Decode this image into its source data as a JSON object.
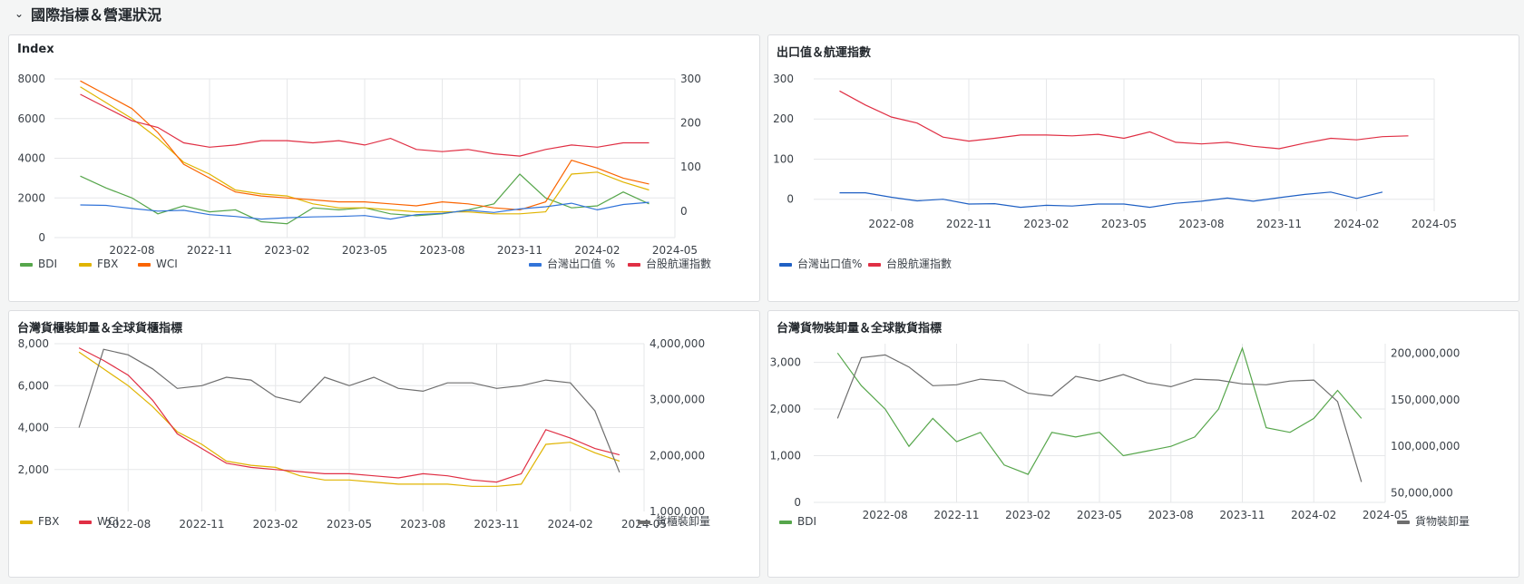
{
  "row": {
    "title": "國際指標＆營運狀況"
  },
  "colors": {
    "bdi": "#56a64b",
    "fbx": "#e0b400",
    "wci": "#fa6400",
    "export": "#3274d9",
    "shipping": "#e02f44",
    "gray": "#6e6e6e",
    "wci2": "#e02f44",
    "blue2": "#1f60c4"
  },
  "panels": [
    {
      "title": "Index",
      "legend_left": [
        "BDI",
        "FBX",
        "WCI"
      ],
      "legend_right": [
        "台灣出口值 %",
        "台股航運指數"
      ],
      "chart_data": {
        "type": "line",
        "x_ticks": [
          "2022-08",
          "2022-11",
          "2023-02",
          "2023-05",
          "2023-08",
          "2023-11",
          "2024-02",
          "2024-05"
        ],
        "y_left_ticks": [
          "8000",
          "6000",
          "4000",
          "2000",
          "0"
        ],
        "y_right_ticks": [
          "300",
          "200",
          "100",
          "0"
        ],
        "ylim_left": [
          0,
          8000
        ],
        "ylim_right": [
          -60,
          300
        ],
        "x_dates": [
          "2022-06",
          "2022-07",
          "2022-08",
          "2022-09",
          "2022-10",
          "2022-11",
          "2022-12",
          "2023-01",
          "2023-02",
          "2023-03",
          "2023-04",
          "2023-05",
          "2023-06",
          "2023-07",
          "2023-08",
          "2023-09",
          "2023-10",
          "2023-11",
          "2023-12",
          "2024-01",
          "2024-02",
          "2024-03",
          "2024-04"
        ],
        "series": [
          {
            "name": "BDI",
            "axis": "left",
            "values": [
              3100,
              2500,
              2000,
              1200,
              1600,
              1300,
              1400,
              800,
              700,
              1500,
              1400,
              1500,
              1200,
              1100,
              1200,
              1400,
              1700,
              3200,
              2000,
              1500,
              1600,
              2300,
              1700
            ]
          },
          {
            "name": "FBX",
            "axis": "left",
            "values": [
              7600,
              6800,
              6000,
              5000,
              3800,
              3200,
              2400,
              2200,
              2100,
              1700,
              1500,
              1500,
              1400,
              1300,
              1300,
              1300,
              1200,
              1200,
              1300,
              3200,
              3300,
              2800,
              2400
            ]
          },
          {
            "name": "WCI",
            "axis": "left",
            "values": [
              7900,
              7200,
              6500,
              5300,
              3700,
              3000,
              2300,
              2100,
              2000,
              1900,
              1800,
              1800,
              1700,
              1600,
              1800,
              1700,
              1500,
              1400,
              1800,
              3900,
              3500,
              3000,
              2700
            ]
          },
          {
            "name": "台灣出口值 %",
            "axis": "right",
            "values": [
              14,
              13,
              6,
              0,
              2,
              -8,
              -12,
              -18,
              -15,
              -13,
              -12,
              -10,
              -18,
              -8,
              -5,
              2,
              -3,
              5,
              10,
              18,
              3,
              15,
              20
            ]
          },
          {
            "name": "台股航運指數",
            "axis": "right",
            "values": [
              265,
              235,
              205,
              190,
              155,
              145,
              150,
              160,
              160,
              155,
              160,
              150,
              165,
              140,
              135,
              140,
              130,
              125,
              140,
              150,
              145,
              155,
              155
            ]
          }
        ]
      }
    },
    {
      "title": "出口值＆航運指數",
      "legend_left": [
        "台灣出口值%",
        "台股航運指數"
      ],
      "chart_data": {
        "type": "line",
        "x_ticks": [
          "2022-08",
          "2022-11",
          "2023-02",
          "2023-05",
          "2023-08",
          "2023-11",
          "2024-02",
          "2024-05"
        ],
        "y_left_ticks": [
          "300",
          "200",
          "100",
          "0"
        ],
        "ylim_left": [
          -30,
          300
        ],
        "x_dates": [
          "2022-06",
          "2022-07",
          "2022-08",
          "2022-09",
          "2022-10",
          "2022-11",
          "2022-12",
          "2023-01",
          "2023-02",
          "2023-03",
          "2023-04",
          "2023-05",
          "2023-06",
          "2023-07",
          "2023-08",
          "2023-09",
          "2023-10",
          "2023-11",
          "2023-12",
          "2024-01",
          "2024-02",
          "2024-03",
          "2024-04"
        ],
        "series": [
          {
            "name": "台灣出口值%",
            "axis": "left",
            "values": [
              16,
              16,
              5,
              -4,
              0,
              -12,
              -11,
              -20,
              -15,
              -17,
              -12,
              -12,
              -20,
              -10,
              -5,
              3,
              -5,
              4,
              12,
              18,
              2,
              18,
              null
            ]
          },
          {
            "name": "台股航運指數",
            "axis": "left",
            "values": [
              270,
              235,
              205,
              190,
              155,
              145,
              152,
              160,
              160,
              158,
              162,
              152,
              168,
              142,
              138,
              142,
              132,
              126,
              140,
              152,
              148,
              156,
              158
            ]
          }
        ]
      }
    },
    {
      "title": "台灣貨櫃裝卸量＆全球貨櫃指標",
      "legend_left": [
        "FBX",
        "WCI"
      ],
      "legend_right": [
        "貨櫃裝卸量"
      ],
      "chart_data": {
        "type": "line",
        "x_ticks": [
          "2022-08",
          "2022-11",
          "2023-02",
          "2023-05",
          "2023-08",
          "2023-11",
          "2024-02",
          "2024-05"
        ],
        "y_left_ticks": [
          "8,000",
          "6,000",
          "4,000",
          "2,000"
        ],
        "y_right_ticks": [
          "4,000,000",
          "3,000,000",
          "2,000,000",
          "1,000,000"
        ],
        "ylim_left": [
          0,
          8000
        ],
        "ylim_right": [
          1000000,
          4000000
        ],
        "x_dates": [
          "2022-06",
          "2022-07",
          "2022-08",
          "2022-09",
          "2022-10",
          "2022-11",
          "2022-12",
          "2023-01",
          "2023-02",
          "2023-03",
          "2023-04",
          "2023-05",
          "2023-06",
          "2023-07",
          "2023-08",
          "2023-09",
          "2023-10",
          "2023-11",
          "2023-12",
          "2024-01",
          "2024-02",
          "2024-03",
          "2024-04"
        ],
        "series": [
          {
            "name": "FBX",
            "axis": "left",
            "values": [
              7600,
              6800,
              6000,
              5000,
              3800,
              3200,
              2400,
              2200,
              2100,
              1700,
              1500,
              1500,
              1400,
              1300,
              1300,
              1300,
              1200,
              1200,
              1300,
              3200,
              3300,
              2800,
              2400
            ]
          },
          {
            "name": "WCI",
            "axis": "left",
            "values": [
              7800,
              7200,
              6500,
              5300,
              3700,
              3000,
              2300,
              2100,
              2000,
              1900,
              1800,
              1800,
              1700,
              1600,
              1800,
              1700,
              1500,
              1400,
              1800,
              3900,
              3500,
              3000,
              2700
            ]
          },
          {
            "name": "貨櫃裝卸量",
            "axis": "right",
            "values": [
              2500000,
              3900000,
              3800000,
              3550000,
              3200000,
              3250000,
              3400000,
              3350000,
              3050000,
              2950000,
              3400000,
              3250000,
              3400000,
              3200000,
              3150000,
              3300000,
              3300000,
              3200000,
              3250000,
              3350000,
              3300000,
              2800000,
              1700000
            ]
          }
        ]
      }
    },
    {
      "title": "台灣貨物裝卸量＆全球散貨指標",
      "legend_left": [
        "BDI"
      ],
      "legend_right": [
        "貨物裝卸量"
      ],
      "chart_data": {
        "type": "line",
        "x_ticks": [
          "2022-08",
          "2022-11",
          "2023-02",
          "2023-05",
          "2023-08",
          "2023-11",
          "2024-02",
          "2024-05"
        ],
        "y_left_ticks": [
          "3,000",
          "2,000",
          "1,000",
          "0"
        ],
        "y_right_ticks": [
          "200,000,000",
          "150,000,000",
          "100,000,000",
          "50,000,000"
        ],
        "ylim_left": [
          0,
          3400
        ],
        "ylim_right": [
          40000000,
          210000000
        ],
        "x_dates": [
          "2022-06",
          "2022-07",
          "2022-08",
          "2022-09",
          "2022-10",
          "2022-11",
          "2022-12",
          "2023-01",
          "2023-02",
          "2023-03",
          "2023-04",
          "2023-05",
          "2023-06",
          "2023-07",
          "2023-08",
          "2023-09",
          "2023-10",
          "2023-11",
          "2023-12",
          "2024-01",
          "2024-02",
          "2024-03",
          "2024-04"
        ],
        "series": [
          {
            "name": "BDI",
            "axis": "left",
            "values": [
              3200,
              2500,
              2000,
              1200,
              1800,
              1300,
              1500,
              800,
              600,
              1500,
              1400,
              1500,
              1000,
              1100,
              1200,
              1400,
              2000,
              3300,
              1600,
              1500,
              1800,
              2400,
              1800
            ]
          },
          {
            "name": "貨物裝卸量",
            "axis": "right",
            "values": [
              130000000,
              195000000,
              198000000,
              185000000,
              165000000,
              166000000,
              172000000,
              170000000,
              157000000,
              154000000,
              175000000,
              170000000,
              177000000,
              168000000,
              164000000,
              172000000,
              171000000,
              167000000,
              166000000,
              170000000,
              171000000,
              148000000,
              62000000
            ]
          }
        ]
      }
    }
  ]
}
